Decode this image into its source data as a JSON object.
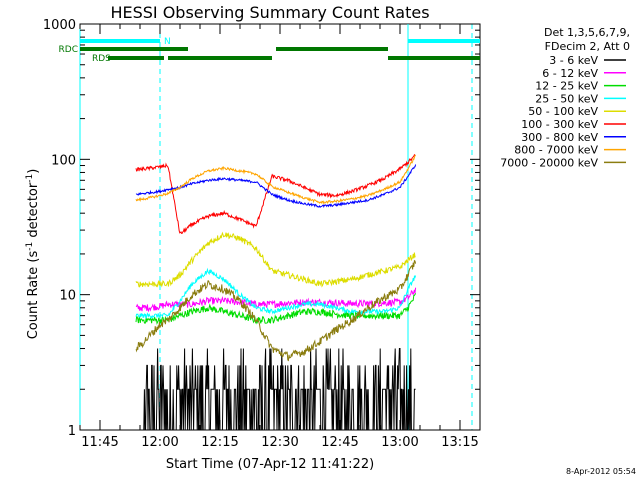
{
  "chart_data": {
    "type": "line",
    "title": "HESSI Observing Summary Count Rates",
    "xlabel": "Start Time (07-Apr-12 11:41:22)",
    "ylabel_main": "Count Rate (s",
    "ylabel_sup1": "-1",
    "ylabel_mid": " detector",
    "ylabel_sup2": "-1",
    "ylabel_end": ")",
    "yscale": "log",
    "ylim": [
      1,
      1000
    ],
    "xlim_minutes": [
      700,
      800
    ],
    "x_ticks": [
      {
        "minute": 705,
        "label": "11:45"
      },
      {
        "minute": 720,
        "label": "12:00"
      },
      {
        "minute": 735,
        "label": "12:15"
      },
      {
        "minute": 750,
        "label": "12:30"
      },
      {
        "minute": 765,
        "label": "12:45"
      },
      {
        "minute": 780,
        "label": "13:00"
      },
      {
        "minute": 795,
        "label": "13:15"
      }
    ],
    "y_ticks": [
      {
        "value": 1,
        "label": "1"
      },
      {
        "value": 10,
        "label": "10"
      },
      {
        "value": 100,
        "label": "100"
      },
      {
        "value": 1000,
        "label": "1000"
      }
    ],
    "legend": {
      "header": [
        "Det 1,3,5,6,7,9,",
        "FDecim 2, Att 0"
      ],
      "placement": "right"
    },
    "series": [
      {
        "name": "3 - 6 keV",
        "color": "#000000",
        "t": [
          714,
          716,
          720,
          722,
          725,
          728,
          732,
          736,
          740,
          744,
          748,
          752,
          756,
          760,
          764,
          768,
          772,
          776,
          780,
          782,
          784
        ],
        "values": [
          1,
          1,
          1.5,
          1.8,
          2,
          2.2,
          2.5,
          2.4,
          2,
          1.6,
          1.5,
          2,
          2.2,
          2.1,
          2,
          2.2,
          2.4,
          2.5,
          2.6,
          2.8,
          3
        ]
      },
      {
        "name": "6 - 12 keV",
        "color": "#ff00ff",
        "t": [
          714,
          716,
          720,
          722,
          725,
          728,
          732,
          736,
          740,
          744,
          748,
          752,
          756,
          760,
          764,
          768,
          772,
          776,
          780,
          782,
          784
        ],
        "values": [
          8,
          8,
          8.2,
          8.5,
          8.5,
          8.5,
          9,
          9,
          8.8,
          8.5,
          8.5,
          8.7,
          8.8,
          8.8,
          8.7,
          8.6,
          8.6,
          8.7,
          8.8,
          9.5,
          11
        ]
      },
      {
        "name": "12 - 25 keV",
        "color": "#00dd00",
        "t": [
          714,
          716,
          720,
          722,
          725,
          728,
          732,
          736,
          740,
          744,
          748,
          752,
          756,
          760,
          764,
          768,
          772,
          776,
          780,
          782,
          784
        ],
        "values": [
          6.5,
          6.5,
          6.5,
          6.5,
          7,
          7.5,
          8,
          7.5,
          7,
          6.5,
          6.5,
          7,
          7.5,
          7.5,
          7.2,
          7,
          7,
          7,
          7,
          8,
          10
        ]
      },
      {
        "name": "25 - 50 keV",
        "color": "#00ffff",
        "t": [
          714,
          716,
          720,
          722,
          725,
          728,
          732,
          736,
          740,
          744,
          748,
          752,
          756,
          760,
          764,
          768,
          772,
          776,
          780,
          782,
          784
        ],
        "values": [
          7,
          7,
          7,
          7,
          9,
          12,
          15,
          13,
          10,
          8,
          7.5,
          8,
          8.5,
          8.5,
          8,
          7.5,
          7.5,
          7.5,
          8,
          11,
          14
        ]
      },
      {
        "name": "50 - 100 keV",
        "color": "#dddd00",
        "t": [
          714,
          716,
          720,
          722,
          725,
          728,
          732,
          736,
          740,
          744,
          748,
          752,
          756,
          760,
          764,
          768,
          772,
          776,
          780,
          782,
          784
        ],
        "values": [
          12,
          12,
          12,
          12,
          14,
          18,
          24,
          28,
          26,
          22,
          15,
          14,
          13,
          12,
          12.5,
          13,
          14,
          15,
          16,
          18,
          20
        ]
      },
      {
        "name": "100 - 300 keV",
        "color": "#ff0000",
        "t": [
          714,
          716,
          720,
          722,
          725,
          728,
          732,
          736,
          740,
          744,
          748,
          752,
          756,
          760,
          764,
          768,
          772,
          776,
          780,
          782,
          784
        ],
        "values": [
          84,
          85,
          88,
          90,
          28,
          33,
          38,
          40,
          36,
          32,
          75,
          70,
          62,
          55,
          54,
          58,
          64,
          72,
          85,
          95,
          108
        ]
      },
      {
        "name": "300 - 800 keV",
        "color": "#0000ff",
        "t": [
          714,
          716,
          720,
          722,
          725,
          728,
          732,
          736,
          740,
          744,
          748,
          752,
          756,
          760,
          764,
          768,
          772,
          776,
          780,
          782,
          784
        ],
        "values": [
          55,
          56,
          58,
          60,
          62,
          66,
          70,
          72,
          70,
          68,
          55,
          50,
          47,
          45,
          46,
          48,
          50,
          55,
          62,
          75,
          92
        ]
      },
      {
        "name": "800 - 7000 keV",
        "color": "#ffa500",
        "t": [
          714,
          716,
          720,
          722,
          725,
          728,
          732,
          736,
          740,
          744,
          748,
          752,
          756,
          760,
          764,
          768,
          772,
          776,
          780,
          782,
          784
        ],
        "values": [
          50,
          51,
          54,
          56,
          62,
          72,
          82,
          86,
          82,
          78,
          63,
          57,
          52,
          48,
          49,
          51,
          54,
          60,
          68,
          85,
          108
        ]
      },
      {
        "name": "7000 - 20000 keV",
        "color": "#8b7d10",
        "t": [
          714,
          716,
          720,
          722,
          725,
          728,
          732,
          736,
          740,
          744,
          748,
          752,
          756,
          760,
          764,
          768,
          772,
          776,
          780,
          782,
          784
        ],
        "values": [
          4,
          4.5,
          6,
          6.5,
          8,
          10,
          12,
          11,
          9,
          6.5,
          4,
          3.5,
          3.8,
          4.5,
          5.5,
          6.5,
          8,
          9.5,
          11,
          14,
          18
        ]
      }
    ],
    "annotations": [
      {
        "label": "N",
        "color": "#00ffff"
      },
      {
        "label": "RDC",
        "color": "#007700"
      },
      {
        "label": "RDS",
        "color": "#007700"
      }
    ],
    "status_bars": {
      "night": {
        "color": "#00ffff",
        "segments": [
          [
            700,
            720
          ],
          [
            782,
            800
          ]
        ]
      },
      "rdc": {
        "color": "#007700",
        "segments": [
          [
            700,
            727
          ],
          [
            749,
            777
          ]
        ]
      },
      "rds": {
        "color": "#007700",
        "segments": [
          [
            707,
            721
          ],
          [
            722,
            748
          ],
          [
            777,
            800
          ]
        ]
      }
    },
    "vlines": [
      {
        "minute": 700,
        "style": "solid",
        "color": "#00ffff"
      },
      {
        "minute": 720,
        "style": "dashed",
        "color": "#00ffff"
      },
      {
        "minute": 782,
        "style": "solid",
        "color": "#00ffff"
      },
      {
        "minute": 798,
        "style": "dashed",
        "color": "#00ffff"
      }
    ],
    "footer": "8-Apr-2012 05:54"
  }
}
